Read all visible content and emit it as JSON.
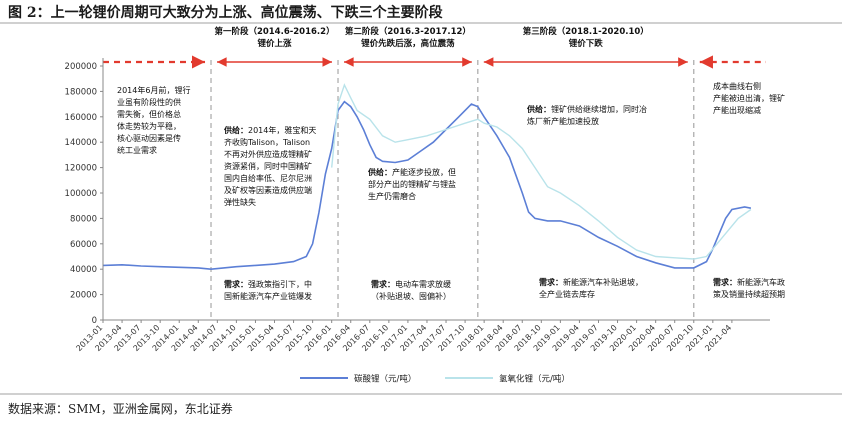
{
  "figure_title": "图 2：上一轮锂价周期可大致分为上涨、高位震荡、下跌三个主要阶段",
  "source": "数据来源：SMM，亚洲金属网，东北证券",
  "colors": {
    "carbonate": "#5c7fd6",
    "hydroxide": "#b9e3ea",
    "arrow": "#e23a2e",
    "divider": "#a8a8a8",
    "axis_text": "#333333"
  },
  "phases": [
    {
      "title": "第一阶段（2014.6-2016.2）",
      "subtitle": "锂价上涨",
      "start": 2014.417,
      "end": 2016.083
    },
    {
      "title": "第二阶段（2016.3-2017.12）",
      "subtitle": "锂价先跌后涨，高位震荡",
      "start": 2016.083,
      "end": 2017.917
    },
    {
      "title": "第三阶段（2018.1-2020.10）",
      "subtitle": "锂价下跌",
      "start": 2017.917,
      "end": 2020.75
    }
  ],
  "annotations": [
    {
      "id": "pre2014",
      "lines": [
        "2014年6月前，锂行",
        "业虽有阶段性的供",
        "需失衡，但价格总",
        "体走势较为平稳，",
        "核心驱动因素是传",
        "统工业需求"
      ]
    },
    {
      "id": "supply1",
      "label": "供给：",
      "lines": [
        "2014年，雅宝和天",
        "齐收购Talison，Talison",
        "不再对外供应造成锂精矿",
        "资源紧俏，同时中国精矿",
        "国内自给率低、尼尔尼洲",
        "及矿权等因素造成供应端",
        "弹性缺失"
      ]
    },
    {
      "id": "demand1",
      "label": "需求：",
      "lines": [
        "强政策指引下，中",
        "国新能源汽车产业链爆发"
      ]
    },
    {
      "id": "supply2",
      "label": "供给：",
      "lines": [
        "产能逐步投放，但",
        "部分产出的锂精矿与锂盐",
        "生产仍需磨合"
      ]
    },
    {
      "id": "demand2",
      "label": "需求：",
      "lines": [
        "电动车需求放缓",
        "（补贴退坡、囤偏补）"
      ]
    },
    {
      "id": "supply3",
      "label": "供给：",
      "lines": [
        "锂矿供给继续增加，同时冶",
        "炼厂新产能加速投放"
      ]
    },
    {
      "id": "demand3",
      "label": "需求：",
      "lines": [
        "新能源汽车补贴退坡，",
        "全产业链去库存"
      ]
    },
    {
      "id": "supply4",
      "lines": [
        "成本曲线右侧",
        "产能被迫出清，锂矿",
        "产能出现缩减"
      ]
    },
    {
      "id": "demand4",
      "label": "需求：",
      "lines": [
        "新能源汽车政",
        "策及销量持续超预期"
      ]
    }
  ],
  "chart_data": {
    "type": "line",
    "ylim": [
      0,
      200000
    ],
    "yticks": [
      0,
      20000,
      40000,
      60000,
      80000,
      100000,
      120000,
      140000,
      160000,
      180000,
      200000
    ],
    "xlim": [
      2013.0,
      2021.75
    ],
    "xtick_labels": [
      "2013-01",
      "2013-04",
      "2013-07",
      "2013-10",
      "2014-01",
      "2014-04",
      "2014-07",
      "2014-10",
      "2015-01",
      "2015-04",
      "2015-07",
      "2015-10",
      "2016-01",
      "2016-04",
      "2016-07",
      "2016-10",
      "2017-01",
      "2017-04",
      "2017-07",
      "2017-10",
      "2018-01",
      "2018-04",
      "2018-07",
      "2018-10",
      "2019-01",
      "2019-04",
      "2019-07",
      "2019-10",
      "2020-01",
      "2020-04",
      "2020-07",
      "2020-10",
      "2021-01",
      "2021-04"
    ],
    "series": [
      {
        "name": "碳酸锂（元/吨）",
        "points": [
          [
            2013.0,
            43000
          ],
          [
            2013.25,
            43500
          ],
          [
            2013.5,
            42500
          ],
          [
            2013.75,
            42000
          ],
          [
            2014.0,
            41500
          ],
          [
            2014.25,
            41000
          ],
          [
            2014.417,
            40000
          ],
          [
            2014.583,
            41000
          ],
          [
            2014.75,
            42000
          ],
          [
            2015.0,
            43000
          ],
          [
            2015.25,
            44000
          ],
          [
            2015.5,
            46000
          ],
          [
            2015.667,
            50000
          ],
          [
            2015.75,
            60000
          ],
          [
            2015.833,
            85000
          ],
          [
            2015.917,
            115000
          ],
          [
            2016.0,
            135000
          ],
          [
            2016.083,
            165000
          ],
          [
            2016.167,
            172000
          ],
          [
            2016.25,
            168000
          ],
          [
            2016.333,
            160000
          ],
          [
            2016.417,
            150000
          ],
          [
            2016.5,
            138000
          ],
          [
            2016.583,
            128000
          ],
          [
            2016.667,
            125000
          ],
          [
            2016.833,
            124000
          ],
          [
            2017.0,
            126000
          ],
          [
            2017.167,
            133000
          ],
          [
            2017.333,
            140000
          ],
          [
            2017.5,
            150000
          ],
          [
            2017.667,
            160000
          ],
          [
            2017.833,
            170000
          ],
          [
            2017.917,
            168000
          ],
          [
            2018.0,
            160000
          ],
          [
            2018.167,
            145000
          ],
          [
            2018.333,
            128000
          ],
          [
            2018.5,
            100000
          ],
          [
            2018.583,
            85000
          ],
          [
            2018.667,
            80000
          ],
          [
            2018.833,
            78000
          ],
          [
            2019.0,
            78000
          ],
          [
            2019.25,
            74000
          ],
          [
            2019.5,
            65000
          ],
          [
            2019.75,
            58000
          ],
          [
            2020.0,
            50000
          ],
          [
            2020.25,
            45000
          ],
          [
            2020.5,
            41000
          ],
          [
            2020.75,
            41000
          ],
          [
            2020.917,
            46000
          ],
          [
            2021.0,
            56000
          ],
          [
            2021.083,
            68000
          ],
          [
            2021.167,
            80000
          ],
          [
            2021.25,
            87000
          ],
          [
            2021.417,
            89000
          ],
          [
            2021.5,
            88000
          ]
        ]
      },
      {
        "name": "氢氧化锂（元/吨）",
        "points": [
          [
            2016.0,
            120000
          ],
          [
            2016.083,
            170000
          ],
          [
            2016.167,
            185000
          ],
          [
            2016.25,
            175000
          ],
          [
            2016.333,
            165000
          ],
          [
            2016.5,
            158000
          ],
          [
            2016.667,
            145000
          ],
          [
            2016.833,
            140000
          ],
          [
            2017.0,
            142000
          ],
          [
            2017.25,
            145000
          ],
          [
            2017.5,
            150000
          ],
          [
            2017.75,
            155000
          ],
          [
            2017.917,
            158000
          ],
          [
            2018.0,
            155000
          ],
          [
            2018.167,
            152000
          ],
          [
            2018.333,
            145000
          ],
          [
            2018.5,
            135000
          ],
          [
            2018.667,
            120000
          ],
          [
            2018.833,
            105000
          ],
          [
            2019.0,
            100000
          ],
          [
            2019.25,
            90000
          ],
          [
            2019.5,
            78000
          ],
          [
            2019.75,
            65000
          ],
          [
            2020.0,
            55000
          ],
          [
            2020.25,
            50000
          ],
          [
            2020.5,
            49000
          ],
          [
            2020.75,
            48000
          ],
          [
            2020.917,
            50000
          ],
          [
            2021.0,
            56000
          ],
          [
            2021.167,
            68000
          ],
          [
            2021.333,
            80000
          ],
          [
            2021.5,
            87000
          ]
        ]
      }
    ],
    "phase_dividers": [
      2014.417,
      2016.083,
      2017.917,
      2020.75
    ],
    "legend_position": "bottom-center"
  }
}
